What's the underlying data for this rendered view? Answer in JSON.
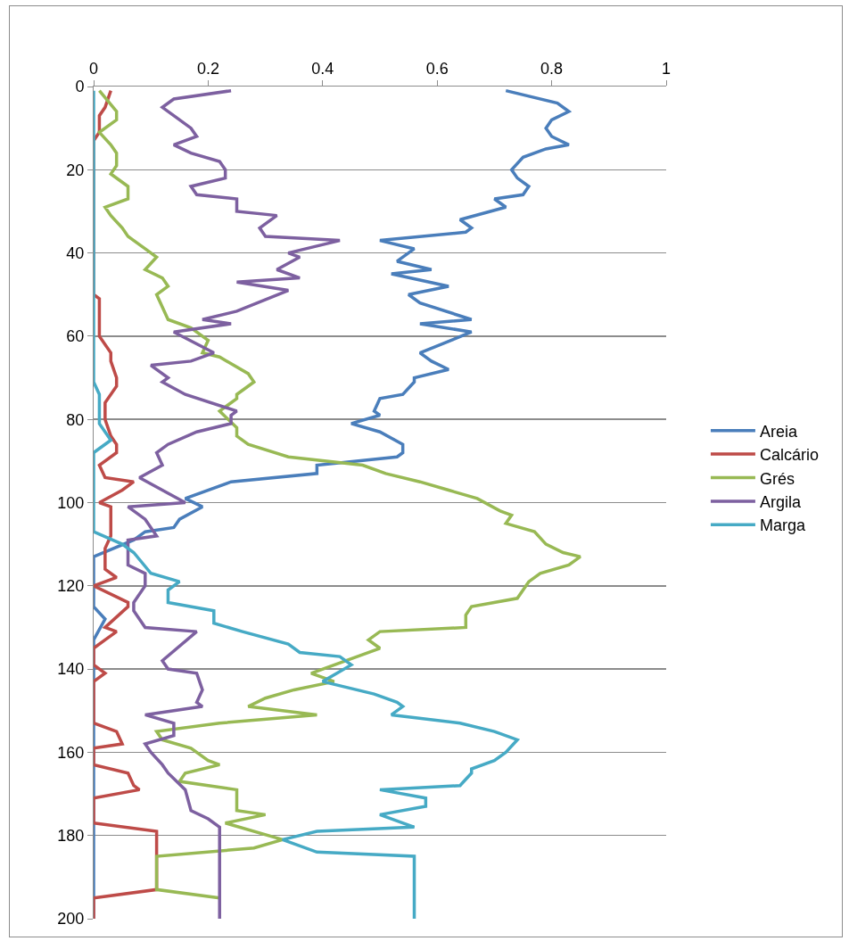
{
  "chart_data": {
    "type": "line",
    "orientation": "horizontal",
    "xlim": [
      0,
      1
    ],
    "xticks": [
      0,
      0.2,
      0.4,
      0.6,
      0.8,
      1
    ],
    "ylim": [
      200,
      0
    ],
    "yticks": [
      0,
      20,
      40,
      60,
      80,
      100,
      120,
      140,
      160,
      180,
      200
    ],
    "grid": "y",
    "legend": "right",
    "series": [
      {
        "name": "Areia",
        "color": "#4a7ebb",
        "x": [
          1,
          4,
          6,
          8,
          10,
          12,
          14,
          15,
          17,
          20,
          22,
          24,
          26,
          27,
          29,
          32,
          34,
          35,
          37,
          39,
          42,
          44,
          45,
          48,
          50,
          52,
          56,
          57,
          59,
          64,
          66,
          68,
          70,
          71,
          74,
          75,
          78,
          79,
          81,
          83,
          86,
          88,
          89,
          91,
          93,
          95,
          99,
          101,
          104,
          106,
          107,
          109,
          113,
          125,
          128,
          133,
          200
        ],
        "values": [
          0.72,
          0.81,
          0.83,
          0.8,
          0.79,
          0.8,
          0.83,
          0.79,
          0.75,
          0.73,
          0.74,
          0.76,
          0.75,
          0.7,
          0.72,
          0.64,
          0.66,
          0.65,
          0.5,
          0.56,
          0.53,
          0.59,
          0.52,
          0.62,
          0.55,
          0.57,
          0.66,
          0.57,
          0.66,
          0.57,
          0.59,
          0.62,
          0.56,
          0.56,
          0.54,
          0.5,
          0.49,
          0.5,
          0.45,
          0.5,
          0.54,
          0.54,
          0.53,
          0.39,
          0.39,
          0.24,
          0.16,
          0.19,
          0.15,
          0.14,
          0.09,
          0.07,
          0,
          0,
          0.02,
          0,
          0
        ]
      },
      {
        "name": "Calcário",
        "color": "#be4b48",
        "x": [
          1,
          5,
          7,
          11,
          13,
          50,
          51,
          60,
          64,
          66,
          70,
          72,
          76,
          80,
          84,
          86,
          88,
          91,
          94,
          95,
          97,
          100,
          101,
          106,
          108,
          111,
          116,
          118,
          120,
          124,
          125,
          130,
          131,
          133,
          135,
          139,
          141,
          143,
          153,
          155,
          158,
          159,
          163,
          165,
          168,
          169,
          171,
          177,
          179,
          193,
          195,
          200
        ],
        "values": [
          0.03,
          0.02,
          0.01,
          0.01,
          0,
          0,
          0.01,
          0.01,
          0.03,
          0.03,
          0.04,
          0.04,
          0.02,
          0.02,
          0.03,
          0.04,
          0.04,
          0.01,
          0.02,
          0.07,
          0.05,
          0.01,
          0.03,
          0.03,
          0.03,
          0.02,
          0.02,
          0.04,
          0,
          0.06,
          0.06,
          0.02,
          0.04,
          0.02,
          0,
          0,
          0.02,
          0,
          0,
          0.04,
          0.05,
          0,
          0,
          0.06,
          0.07,
          0.08,
          0,
          0,
          0.11,
          0.11,
          0,
          0
        ]
      },
      {
        "name": "Grés",
        "color": "#98b954",
        "x": [
          1,
          6,
          8,
          11,
          14,
          16,
          19,
          21,
          24,
          27,
          29,
          31,
          34,
          36,
          37,
          39,
          41,
          44,
          46,
          48,
          50,
          53,
          56,
          58,
          61,
          64,
          65,
          69,
          71,
          74,
          75,
          78,
          82,
          84,
          86,
          89,
          91,
          93,
          95,
          97,
          99,
          102,
          103,
          105,
          107,
          110,
          112,
          113,
          115,
          117,
          119,
          123,
          125,
          127,
          130,
          131,
          133,
          135,
          138,
          141,
          143,
          145,
          147,
          149,
          151,
          153,
          155,
          157,
          159,
          162,
          163,
          165,
          167,
          169,
          174,
          175,
          177,
          181,
          183,
          185,
          193,
          195
        ],
        "values": [
          0.01,
          0.04,
          0.04,
          0.01,
          0.03,
          0.04,
          0.04,
          0.03,
          0.06,
          0.06,
          0.02,
          0.03,
          0.05,
          0.06,
          0.07,
          0.09,
          0.11,
          0.09,
          0.12,
          0.13,
          0.11,
          0.12,
          0.13,
          0.17,
          0.2,
          0.19,
          0.22,
          0.27,
          0.28,
          0.25,
          0.25,
          0.22,
          0.25,
          0.25,
          0.27,
          0.34,
          0.47,
          0.51,
          0.57,
          0.62,
          0.67,
          0.71,
          0.73,
          0.72,
          0.77,
          0.79,
          0.82,
          0.85,
          0.83,
          0.78,
          0.76,
          0.74,
          0.66,
          0.65,
          0.65,
          0.5,
          0.48,
          0.5,
          0.44,
          0.38,
          0.42,
          0.35,
          0.3,
          0.27,
          0.39,
          0.22,
          0.11,
          0.12,
          0.17,
          0.2,
          0.22,
          0.16,
          0.15,
          0.25,
          0.25,
          0.3,
          0.23,
          0.33,
          0.28,
          0.11,
          0.11,
          0.22
        ]
      },
      {
        "name": "Argila",
        "color": "#7d60a0",
        "x": [
          1,
          3,
          5,
          7,
          10,
          12,
          14,
          16,
          18,
          20,
          22,
          24,
          26,
          27,
          30,
          31,
          34,
          36,
          37,
          40,
          41,
          44,
          46,
          47,
          49,
          54,
          56,
          57,
          59,
          64,
          66,
          67,
          70,
          71,
          74,
          78,
          79,
          81,
          83,
          86,
          88,
          91,
          94,
          100,
          101,
          104,
          108,
          109,
          112,
          115,
          117,
          120,
          124,
          126,
          130,
          131,
          138,
          140,
          141,
          145,
          148,
          149,
          151,
          153,
          156,
          158,
          160,
          163,
          165,
          169,
          174,
          176,
          178,
          200
        ],
        "values": [
          0.24,
          0.14,
          0.12,
          0.14,
          0.17,
          0.18,
          0.14,
          0.17,
          0.22,
          0.23,
          0.23,
          0.17,
          0.18,
          0.25,
          0.25,
          0.32,
          0.29,
          0.3,
          0.43,
          0.34,
          0.36,
          0.32,
          0.36,
          0.25,
          0.34,
          0.25,
          0.19,
          0.24,
          0.14,
          0.21,
          0.17,
          0.1,
          0.13,
          0.12,
          0.16,
          0.25,
          0.24,
          0.24,
          0.18,
          0.13,
          0.11,
          0.12,
          0.08,
          0.16,
          0.06,
          0.09,
          0.11,
          0.06,
          0.06,
          0.06,
          0.09,
          0.09,
          0.07,
          0.07,
          0.09,
          0.18,
          0.12,
          0.13,
          0.18,
          0.19,
          0.18,
          0.19,
          0.09,
          0.14,
          0.14,
          0.09,
          0.1,
          0.12,
          0.13,
          0.16,
          0.17,
          0.2,
          0.22,
          0.22
        ]
      },
      {
        "name": "Marga",
        "color": "#46aac5",
        "x": [
          1,
          71,
          74,
          81,
          85,
          88,
          107,
          110,
          112,
          117,
          119,
          121,
          124,
          126,
          129,
          131,
          134,
          136,
          137,
          139,
          143,
          146,
          148,
          149,
          151,
          153,
          155,
          157,
          160,
          162,
          164,
          165,
          168,
          169,
          171,
          173,
          175,
          178,
          179,
          181,
          184,
          185,
          200
        ],
        "values": [
          0,
          0,
          0.01,
          0.01,
          0.03,
          0,
          0,
          0.05,
          0.07,
          0.1,
          0.15,
          0.13,
          0.13,
          0.21,
          0.21,
          0.26,
          0.34,
          0.36,
          0.43,
          0.45,
          0.4,
          0.49,
          0.53,
          0.54,
          0.52,
          0.64,
          0.7,
          0.74,
          0.72,
          0.7,
          0.66,
          0.66,
          0.64,
          0.5,
          0.58,
          0.58,
          0.5,
          0.56,
          0.39,
          0.33,
          0.39,
          0.56,
          0.56
        ]
      }
    ]
  }
}
